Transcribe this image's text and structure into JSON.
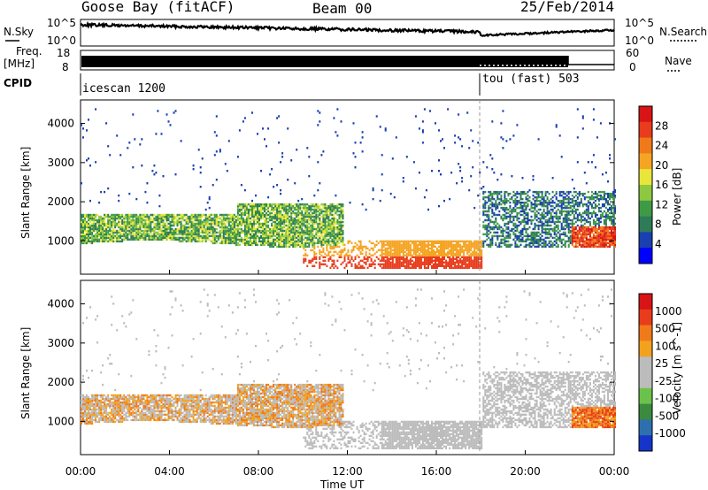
{
  "header": {
    "site": "Goose Bay (fitACF)",
    "beam": "Beam 00",
    "date": "25/Feb/2014"
  },
  "labels": {
    "nsky": "N.Sky",
    "nsearch": "N.Search",
    "freq_top": "Freq.",
    "freq_unit": "[MHz]",
    "nave": "Nave",
    "cpid": "CPID",
    "nsky_hi": "10^5",
    "nsky_lo": "10^0",
    "nsearch_hi": "10^5",
    "nsearch_lo": "10^0",
    "freq_hi": "18",
    "freq_lo": "8",
    "nave_hi": "60",
    "nave_lo": "0",
    "cpid_a": "icescan 1200",
    "cpid_b": "tou (fast) 503"
  },
  "colors": {
    "power": [
      "#0000ff",
      "#1a3fb0",
      "#2e7b57",
      "#3f9a45",
      "#8ec740",
      "#e8e63a",
      "#f5a423",
      "#f07a1a",
      "#e83c1c",
      "#d81416"
    ],
    "velocity": [
      "#1535c8",
      "#2e6fb0",
      "#3b8a3f",
      "#6ac24a",
      "#bcbcbc",
      "#bcbcbc",
      "#f2a21e",
      "#f07a1a",
      "#e83c1c",
      "#d81416"
    ]
  },
  "chart_data": [
    {
      "type": "heatmap",
      "title": "Power",
      "xlabel": "",
      "ylabel": "Slant Range [km]",
      "yticks": [
        "1000",
        "2000",
        "3000",
        "4000"
      ],
      "ylim": [
        150,
        4600
      ],
      "xlim": [
        0,
        24
      ],
      "colorbar_label": "Power [dB]",
      "colorbar_ticks": [
        "4",
        "8",
        "12",
        "16",
        "20",
        "24",
        "28"
      ],
      "regions": [
        {
          "t0": 0.0,
          "t1": 11.5,
          "r0": 900,
          "r1": 2000,
          "level": "mixed-low"
        },
        {
          "t0": 10.0,
          "t1": 17.0,
          "r0": 400,
          "r1": 1000,
          "level": "high"
        },
        {
          "t0": 18.0,
          "t1": 24.0,
          "r0": 900,
          "r1": 2300,
          "level": "mixed-low"
        },
        {
          "t0": 22.0,
          "t1": 24.0,
          "r0": 900,
          "r1": 1400,
          "level": "high"
        }
      ]
    },
    {
      "type": "heatmap",
      "title": "Velocity",
      "xlabel": "Time UT",
      "ylabel": "Slant Range [km]",
      "yticks": [
        "1000",
        "2000",
        "3000",
        "4000"
      ],
      "ylim": [
        150,
        4600
      ],
      "xlim": [
        0,
        24
      ],
      "xticks": [
        "00:00",
        "04:00",
        "08:00",
        "12:00",
        "16:00",
        "20:00",
        "00:00"
      ],
      "colorbar_label": "Velocity [m s^-1]",
      "colorbar_ticks": [
        "1000",
        "500",
        "100",
        "25",
        "-25",
        "-100",
        "-500",
        "-1000"
      ]
    }
  ]
}
